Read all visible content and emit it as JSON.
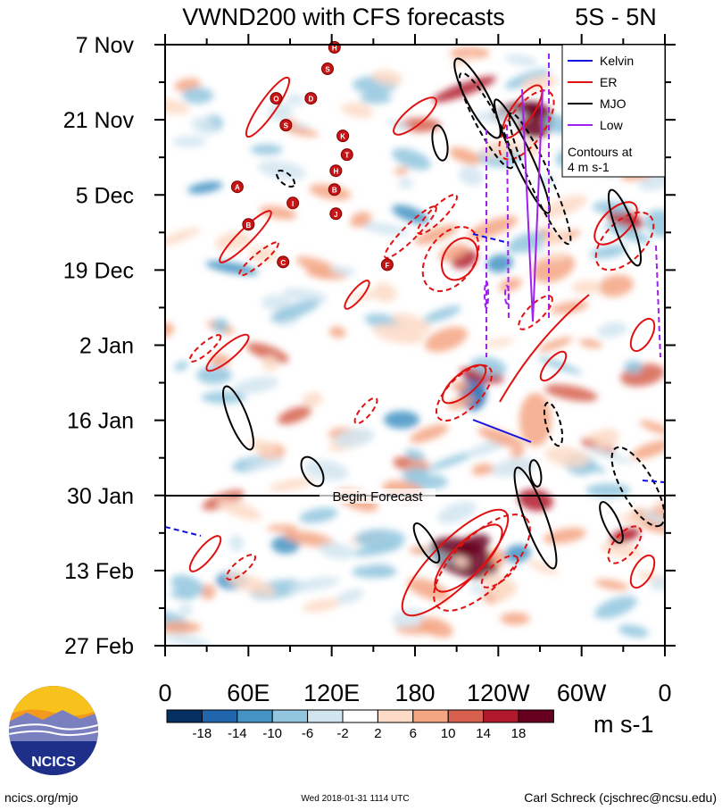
{
  "title": "VWND200 with CFS forecasts",
  "region": "5S - 5N",
  "chart_data": {
    "type": "heatmap",
    "variable": "VWND200",
    "x_axis": {
      "ticks": [
        {
          "lon": 0,
          "label": "0"
        },
        {
          "lon": 60,
          "label": "60E"
        },
        {
          "lon": 120,
          "label": "120E"
        },
        {
          "lon": 180,
          "label": "180"
        },
        {
          "lon": 240,
          "label": "120W"
        },
        {
          "lon": 300,
          "label": "60W"
        },
        {
          "lon": 360,
          "label": "0"
        }
      ],
      "range": [
        0,
        360
      ]
    },
    "y_axis": {
      "ticks": [
        {
          "day": 0,
          "label": "7 Nov"
        },
        {
          "day": 14,
          "label": "21 Nov"
        },
        {
          "day": 28,
          "label": "5 Dec"
        },
        {
          "day": 42,
          "label": "19 Dec"
        },
        {
          "day": 56,
          "label": "2 Jan"
        },
        {
          "day": 70,
          "label": "16 Jan"
        },
        {
          "day": 84,
          "label": "30 Jan"
        },
        {
          "day": 98,
          "label": "13 Feb"
        },
        {
          "day": 112,
          "label": "27 Feb"
        }
      ],
      "range": [
        "7 Nov",
        "27 Feb"
      ]
    },
    "forecast_start": "30 Jan",
    "forecast_label": "Begin Forecast",
    "colorbar": {
      "labels": [
        "-18",
        "-14",
        "-10",
        "-6",
        "-2",
        "2",
        "6",
        "10",
        "14",
        "18"
      ],
      "colors": [
        "#053061",
        "#2166ac",
        "#4393c3",
        "#92c5de",
        "#d1e5f0",
        "#ffffff",
        "#fddbc7",
        "#f4a582",
        "#d6604d",
        "#b2182b",
        "#67001f"
      ],
      "unit": "m s-1"
    },
    "legend": {
      "position": "top-right",
      "entries": [
        {
          "name": "Kelvin",
          "color": "#1010e0",
          "style": "solid"
        },
        {
          "name": "ER",
          "color": "#e01010",
          "style": "solid"
        },
        {
          "name": "MJO",
          "color": "#000000",
          "style": "solid"
        },
        {
          "name": "Low",
          "color": "#a020f0",
          "style": "solid"
        }
      ],
      "note": "Contours at\n4 m s-1"
    },
    "cyclones": [
      {
        "lon": 122,
        "day": 0.5,
        "letter": "H"
      },
      {
        "lon": 117,
        "day": 4.5,
        "letter": "S"
      },
      {
        "lon": 80,
        "day": 10,
        "letter": "O"
      },
      {
        "lon": 105,
        "day": 10,
        "letter": "D"
      },
      {
        "lon": 87,
        "day": 15,
        "letter": "S"
      },
      {
        "lon": 128,
        "day": 17,
        "letter": "K"
      },
      {
        "lon": 131,
        "day": 20.5,
        "letter": "T"
      },
      {
        "lon": 123,
        "day": 23.5,
        "letter": "H"
      },
      {
        "lon": 122,
        "day": 27,
        "letter": "B"
      },
      {
        "lon": 52,
        "day": 26.5,
        "letter": "A"
      },
      {
        "lon": 92,
        "day": 29.5,
        "letter": "I"
      },
      {
        "lon": 123,
        "day": 31.5,
        "letter": "J"
      },
      {
        "lon": 60,
        "day": 33.5,
        "letter": "B"
      },
      {
        "lon": 85,
        "day": 40.5,
        "letter": "C"
      },
      {
        "lon": 160,
        "day": 41,
        "letter": "F"
      }
    ]
  },
  "footer": {
    "url": "ncics.org/mjo",
    "timestamp": "Wed 2018-01-31 1114 UTC",
    "author": "Carl Schreck (cjschrec@ncsu.edu)",
    "logo_text": "NCICS"
  }
}
